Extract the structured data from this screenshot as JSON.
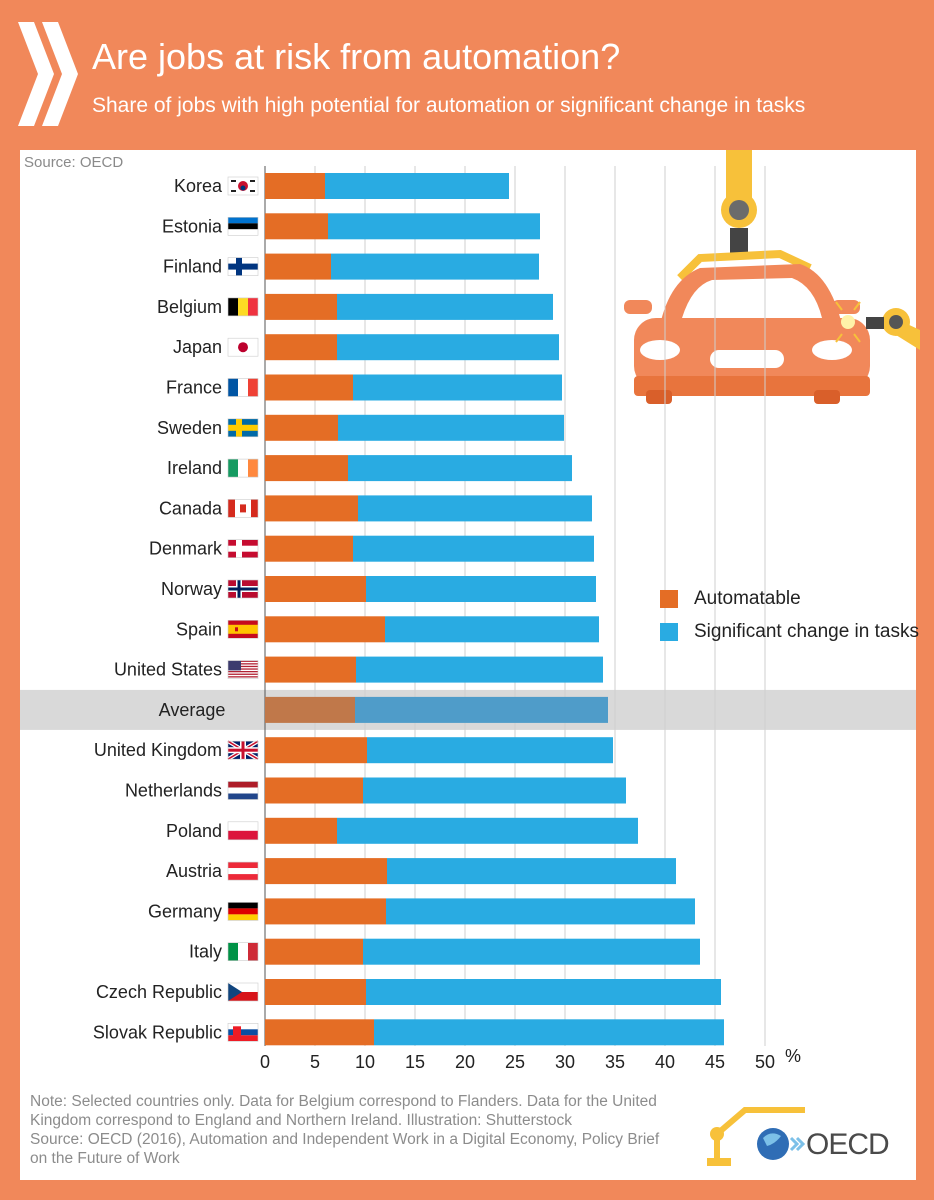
{
  "header": {
    "title": "Are jobs at risk from automation?",
    "subtitle": "Share of jobs with high potential for automation or significant change in tasks"
  },
  "source_top": "Source: OECD",
  "legend": [
    {
      "label": "Automatable",
      "color": "#e46d25"
    },
    {
      "label": "Significant change in tasks",
      "color": "#29abe2"
    }
  ],
  "colors": {
    "background": "#f1885a",
    "automatable": "#e46d25",
    "change": "#29abe2",
    "average_band": "#d9d9d9",
    "average_automatable": "#c0784a",
    "average_change": "#4f9cc9"
  },
  "notes": {
    "line1": "Note: Selected countries only. Data for Belgium correspond to Flanders. Data for the United Kingdom correspond to England and Northern Ireland. Illustration: Shutterstock",
    "line2": "Source: OECD (2016), Automation and Independent Work in a Digital Economy, Policy Brief on the Future of Work"
  },
  "logo_text": "OECD",
  "chart_data": {
    "type": "bar",
    "orientation": "horizontal",
    "stacked": true,
    "title": "Are jobs at risk from automation?",
    "subtitle": "Share of jobs with high potential for automation or significant change in tasks",
    "xlabel": "%",
    "xlim": [
      0,
      50
    ],
    "xticks": [
      0,
      5,
      10,
      15,
      20,
      25,
      30,
      35,
      40,
      45,
      50
    ],
    "grid": "vertical",
    "highlight": "Average",
    "categories": [
      "Korea",
      "Estonia",
      "Finland",
      "Belgium",
      "Japan",
      "France",
      "Sweden",
      "Ireland",
      "Canada",
      "Denmark",
      "Norway",
      "Spain",
      "United States",
      "Average",
      "United Kingdom",
      "Netherlands",
      "Poland",
      "Austria",
      "Germany",
      "Italy",
      "Czech Republic",
      "Slovak Republic"
    ],
    "flags": [
      "korea",
      "estonia",
      "finland",
      "belgium",
      "japan",
      "france",
      "sweden",
      "ireland",
      "canada",
      "denmark",
      "norway",
      "spain",
      "united-states",
      "",
      "united-kingdom",
      "netherlands",
      "poland",
      "austria",
      "germany",
      "italy",
      "czech-republic",
      "slovak-republic"
    ],
    "series": [
      {
        "name": "Automatable",
        "values": [
          6,
          6.3,
          6.6,
          7.2,
          7.2,
          8.8,
          7.3,
          8.3,
          9.3,
          8.8,
          10.1,
          12,
          9.1,
          9,
          10.2,
          9.8,
          7.2,
          12.2,
          12.1,
          9.8,
          10.1,
          10.9
        ]
      },
      {
        "name": "Significant change in tasks",
        "values": [
          18.4,
          21.2,
          20.8,
          21.6,
          22.2,
          20.9,
          22.6,
          22.4,
          23.4,
          24.1,
          23,
          21.4,
          24.7,
          25.3,
          24.6,
          26.3,
          30.1,
          28.9,
          30.9,
          33.7,
          35.5,
          35
        ]
      }
    ]
  }
}
